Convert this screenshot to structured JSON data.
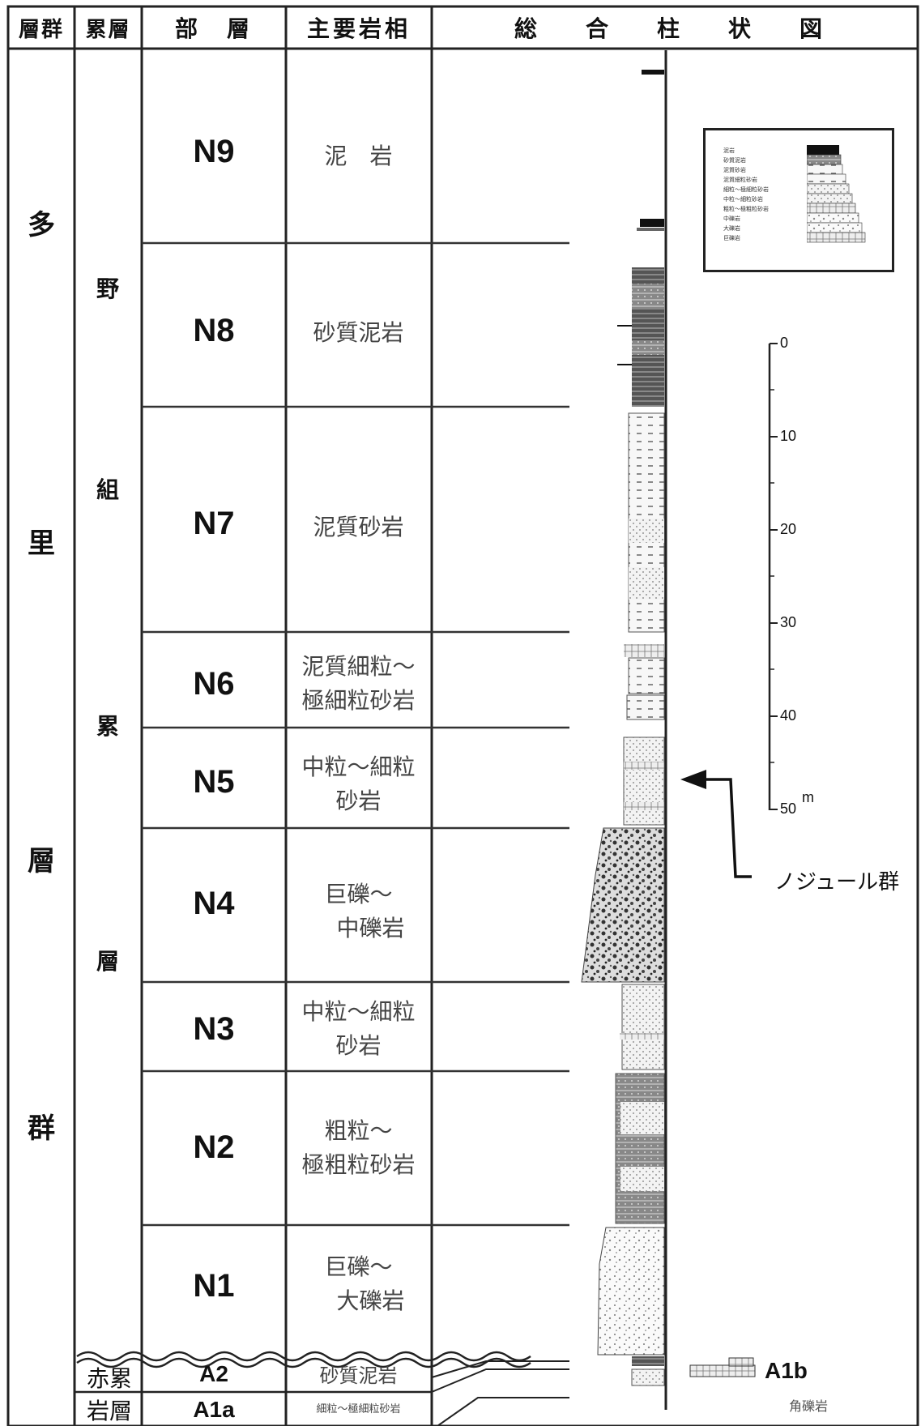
{
  "header": {
    "group": "層群",
    "formation": "累層",
    "member": "部　層",
    "lithology": "主要岩相",
    "column": "総　合　柱　状　図"
  },
  "group_name": [
    "多",
    "里",
    "層",
    "群"
  ],
  "formation_name": [
    "野",
    "組",
    "累",
    "層"
  ],
  "lower_formation": [
    "赤累",
    "岩層"
  ],
  "units": [
    {
      "id": "N9",
      "lithology": [
        "泥　岩"
      ]
    },
    {
      "id": "N8",
      "lithology": [
        "砂質泥岩"
      ]
    },
    {
      "id": "N7",
      "lithology": [
        "泥質砂岩"
      ]
    },
    {
      "id": "N6",
      "lithology": [
        "泥質細粒～",
        "極細粒砂岩"
      ]
    },
    {
      "id": "N5",
      "lithology": [
        "中粒～細粒",
        "砂岩"
      ]
    },
    {
      "id": "N4",
      "lithology": [
        "巨礫～",
        "中礫岩"
      ]
    },
    {
      "id": "N3",
      "lithology": [
        "中粒～細粒",
        "砂岩"
      ]
    },
    {
      "id": "N2",
      "lithology": [
        "粗粒～",
        "極粗粒砂岩"
      ]
    },
    {
      "id": "N1",
      "lithology": [
        "巨礫～",
        "大礫岩"
      ]
    }
  ],
  "lower_units": [
    {
      "id": "A2",
      "lithology": "砂質泥岩"
    },
    {
      "id": "A1a",
      "lithology": "細粒～極細粒砂岩"
    }
  ],
  "scale": {
    "ticks": [
      "0",
      "10",
      "20",
      "30",
      "40",
      "50"
    ],
    "unit": "m"
  },
  "annotation": "ノジュール群",
  "a1b": {
    "id": "A1b",
    "lithology": "角礫岩"
  },
  "legend": [
    "泥岩",
    "砂質泥岩",
    "泥質砂岩",
    "泥質細粒砂岩",
    "細粒～極細粒砂岩",
    "中粒～細粒砂岩",
    "粗粒～極粗粒砂岩",
    "中礫岩",
    "大礫岩",
    "巨礫岩"
  ]
}
